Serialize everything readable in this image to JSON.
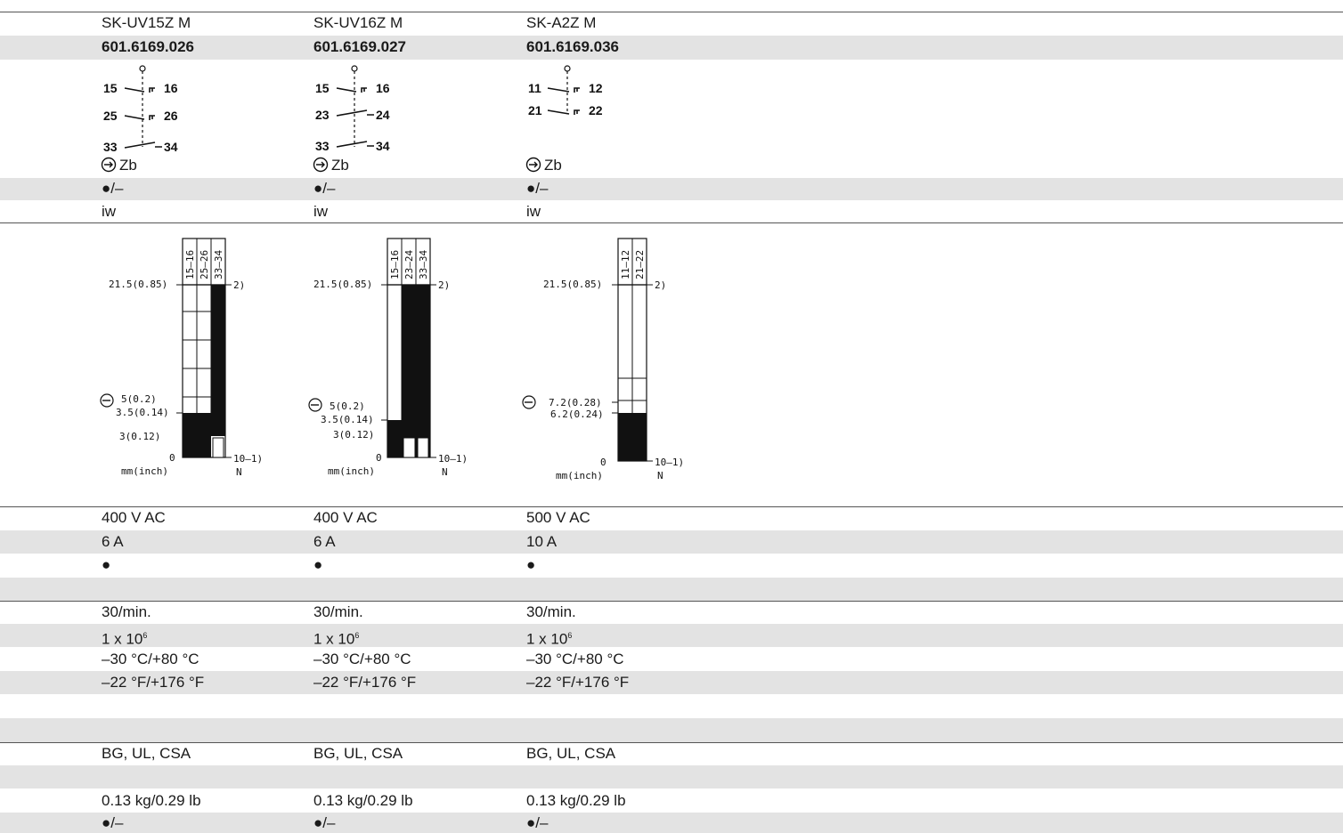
{
  "columns": [
    {
      "type": "SK-UV15Z M",
      "part_no": "601.6169.026",
      "wiring": {
        "terminals": [
          "15",
          "16",
          "25",
          "26",
          "33",
          "34"
        ],
        "note": "Zb"
      },
      "contact_symbol": "●/–",
      "housing": "iw",
      "travel": {
        "headers": [
          "15–16",
          "25–26",
          "33–34"
        ],
        "left_labels": [
          "21.5(0.85)",
          "5(0.2)",
          "3.5(0.14)",
          "3(0.12)",
          "0",
          "mm(inch)"
        ],
        "right_labels": [
          "2)",
          "10–1)",
          "N"
        ]
      },
      "voltage": "400 V AC",
      "current": "6 A",
      "approval_mark": "●",
      "frequency": "30/min.",
      "life": "1 x 10",
      "life_exp": "6",
      "temp_c": "–30 °C/+80 °C",
      "temp_f": "–22 °F/+176 °F",
      "approvals": "BG, UL, CSA",
      "weight": "0.13 kg/0.29 lb",
      "last": "●/–"
    },
    {
      "type": "SK-UV16Z M",
      "part_no": "601.6169.027",
      "wiring": {
        "terminals": [
          "15",
          "16",
          "23",
          "24",
          "33",
          "34"
        ],
        "note": "Zb"
      },
      "contact_symbol": "●/–",
      "housing": "iw",
      "travel": {
        "headers": [
          "15–16",
          "23–24",
          "33–34"
        ],
        "left_labels": [
          "21.5(0.85)",
          "5(0.2)",
          "3.5(0.14)",
          "3(0.12)",
          "0",
          "mm(inch)"
        ],
        "right_labels": [
          "2)",
          "10–1)",
          "N"
        ]
      },
      "voltage": "400 V AC",
      "current": "6 A",
      "approval_mark": "●",
      "frequency": "30/min.",
      "life": "1 x 10",
      "life_exp": "6",
      "temp_c": "–30 °C/+80 °C",
      "temp_f": "–22 °F/+176 °F",
      "approvals": "BG, UL, CSA",
      "weight": "0.13 kg/0.29 lb",
      "last": "●/–"
    },
    {
      "type": "SK-A2Z M",
      "part_no": "601.6169.036",
      "wiring": {
        "terminals": [
          "11",
          "12",
          "21",
          "22"
        ],
        "note": "Zb"
      },
      "contact_symbol": "●/–",
      "housing": "iw",
      "travel": {
        "headers": [
          "11–12",
          "21–22"
        ],
        "left_labels": [
          "21.5(0.85)",
          "7.2(0.28)",
          "6.2(0.24)",
          "0",
          "mm(inch)"
        ],
        "right_labels": [
          "2)",
          "10–1)",
          "N"
        ]
      },
      "voltage": "500 V AC",
      "current": "10 A",
      "approval_mark": "●",
      "frequency": "30/min.",
      "life": "1 x 10",
      "life_exp": "6",
      "temp_c": "–30 °C/+80 °C",
      "temp_f": "–22 °F/+176 °F",
      "approvals": "BG, UL, CSA",
      "weight": "0.13 kg/0.29 lb",
      "last": "●/–"
    }
  ]
}
